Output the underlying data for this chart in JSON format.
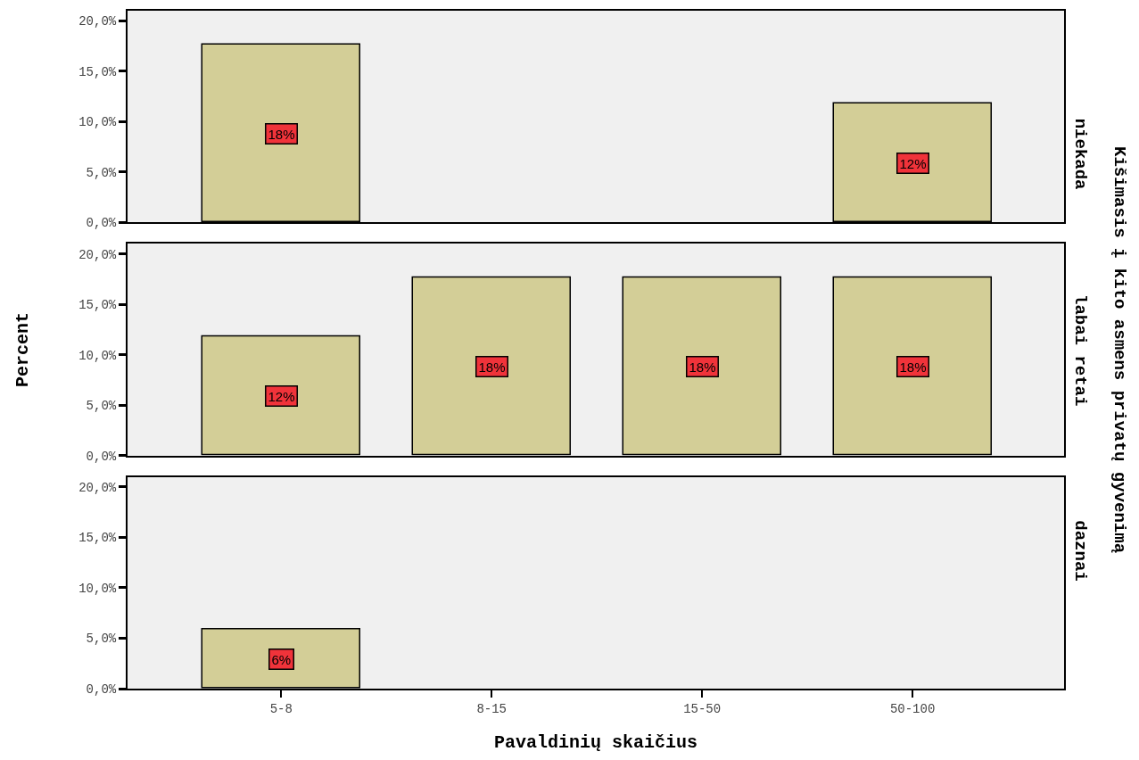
{
  "chart_data": [
    {
      "type": "bar",
      "title": "niekada",
      "categories": [
        "5-8",
        "8-15",
        "15-50",
        "50-100"
      ],
      "values": [
        17.6,
        null,
        null,
        11.8
      ],
      "value_labels": [
        "18%",
        null,
        null,
        "12%"
      ],
      "color": "#d3ce97",
      "ylim": [
        0,
        21
      ],
      "yticks": [
        {
          "value": 0,
          "label": "0,0%"
        },
        {
          "value": 5,
          "label": "5,0%"
        },
        {
          "value": 10,
          "label": "10,0%"
        },
        {
          "value": 15,
          "label": "15,0%"
        },
        {
          "value": 20,
          "label": "20,0%"
        }
      ],
      "grid": false,
      "tick_labels": "y"
    },
    {
      "type": "bar",
      "title": "labai retai",
      "ylabel": "Percent",
      "y2label": "Kišimasis į kito asmens privatų gyvenimą",
      "categories": [
        "5-8",
        "8-15",
        "15-50",
        "50-100"
      ],
      "values": [
        11.8,
        17.6,
        17.6,
        17.6
      ],
      "value_labels": [
        "12%",
        "18%",
        "18%",
        "18%"
      ],
      "color": "#d3ce97",
      "ylim": [
        0,
        21
      ],
      "yticks": [
        {
          "value": 0,
          "label": "0,0%"
        },
        {
          "value": 5,
          "label": "5,0%"
        },
        {
          "value": 10,
          "label": "10,0%"
        },
        {
          "value": 15,
          "label": "15,0%"
        },
        {
          "value": 20,
          "label": "20,0%"
        }
      ],
      "grid": false,
      "tick_labels": "y"
    },
    {
      "type": "bar",
      "title": "daznai",
      "xlabel": "Pavaldinių skaičius",
      "categories": [
        "5-8",
        "8-15",
        "15-50",
        "50-100"
      ],
      "values": [
        5.9,
        null,
        null,
        null
      ],
      "value_labels": [
        "6%",
        null,
        null,
        null
      ],
      "color": "#d3ce97",
      "ylim": [
        0,
        21
      ],
      "yticks": [
        {
          "value": 0,
          "label": "0,0%"
        },
        {
          "value": 5,
          "label": "5,0%"
        },
        {
          "value": 10,
          "label": "10,0%"
        },
        {
          "value": 15,
          "label": "15,0%"
        },
        {
          "value": 20,
          "label": "20,0%"
        }
      ],
      "grid": false
    }
  ]
}
